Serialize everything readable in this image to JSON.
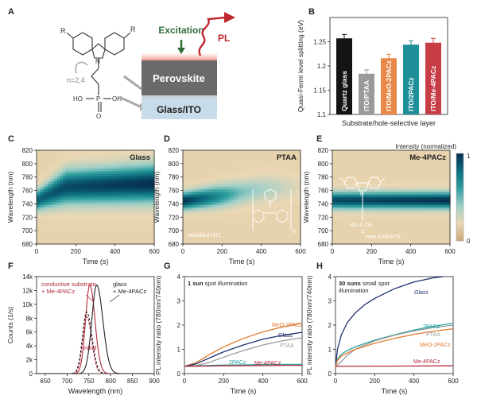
{
  "panels": {
    "A": {
      "letter": "A",
      "excitation": "Excitation",
      "pl": "PL",
      "perovskite": "Perovskite",
      "glass_ito": "Glass/ITO",
      "n_label": "n=2,4",
      "r1": "R",
      "r2": "R",
      "n_atom": "N",
      "p_atom": "P",
      "acid_left": "HO",
      "acid_right": "OH",
      "oxo": "O"
    },
    "B": {
      "letter": "B"
    },
    "C": {
      "letter": "C"
    },
    "D": {
      "letter": "D",
      "inset_label": "standard HTL",
      "inset_n": "n"
    },
    "E": {
      "letter": "E",
      "inset_label": "new SAM HTL",
      "ring_n": "N",
      "ring_r1": "",
      "ring_r2": "",
      "acid": "HO–P–OH",
      "oxo": "O"
    },
    "F": {
      "letter": "F",
      "note_initial": "Initial"
    },
    "G": {
      "letter": "G",
      "note_bold": "1 sun",
      "note_rest": " spot illumination"
    },
    "H": {
      "letter": "H",
      "note_bold": "30 suns",
      "note_rest": " small spot",
      "note_line2": "illumination"
    }
  },
  "colorbar": {
    "title": "Intensity (normalized)",
    "max": "1",
    "min": "0",
    "colors": [
      "#caa87a",
      "#ead7b4",
      "#9fcfc8",
      "#2f9f9f",
      "#0d6d7e",
      "#06304f"
    ]
  },
  "chart_data": [
    {
      "id": "B",
      "type": "bar",
      "ylabel": "Quasi-Fermi level splitting (eV)",
      "xlabel": "Substrate/hole-selective layer",
      "ylim": [
        1.1,
        1.3
      ],
      "yticks": [
        "1.1",
        "1.15",
        "1.2",
        "1.25"
      ],
      "ytick_values": [
        1.1,
        1.15,
        1.2,
        1.25
      ],
      "categories": [
        "Quartz glass",
        "ITO/PTAA",
        "ITO/MeO-2PACz",
        "ITO/2PACz",
        "ITO/Me-4PACz"
      ],
      "values": [
        1.257,
        1.184,
        1.216,
        1.244,
        1.248
      ],
      "errors": [
        0.008,
        0.008,
        0.008,
        0.008,
        0.009
      ],
      "colors": [
        "#141414",
        "#9a9a9a",
        "#e8894a",
        "#1e8e98",
        "#c73d45"
      ]
    },
    {
      "id": "C",
      "type": "heatmap",
      "title": "Glass",
      "xlabel": "Time (s)",
      "ylabel": "Wavelength (nm)",
      "xlim": [
        0,
        600
      ],
      "ylim": [
        680,
        820
      ],
      "xticks": [
        "0",
        "200",
        "400",
        "600"
      ],
      "xtick_values": [
        0,
        200,
        400,
        600
      ],
      "yticks": [
        "680",
        "700",
        "720",
        "740",
        "760",
        "780",
        "800",
        "820"
      ],
      "ytick_values": [
        680,
        700,
        720,
        740,
        760,
        780,
        800,
        820
      ],
      "peak_center": [
        {
          "t": 0,
          "wl": 745
        },
        {
          "t": 150,
          "wl": 765
        },
        {
          "t": 600,
          "wl": 770
        }
      ],
      "peak_width_nm": [
        {
          "t": 0,
          "w": 14
        },
        {
          "t": 150,
          "w": 24
        },
        {
          "t": 600,
          "w": 26
        }
      ],
      "peak_intensity": [
        {
          "t": 0,
          "v": 0.8
        },
        {
          "t": 150,
          "v": 0.9
        },
        {
          "t": 600,
          "v": 1.0
        }
      ]
    },
    {
      "id": "D",
      "type": "heatmap",
      "title": "PTAA",
      "xlabel": "Time (s)",
      "ylabel": "Wavelength (nm)",
      "xlim": [
        0,
        600
      ],
      "ylim": [
        680,
        820
      ],
      "xticks": [
        "0",
        "200",
        "400",
        "600"
      ],
      "xtick_values": [
        0,
        200,
        400,
        600
      ],
      "yticks": [
        "680",
        "700",
        "720",
        "740",
        "760",
        "780",
        "800",
        "820"
      ],
      "ytick_values": [
        680,
        700,
        720,
        740,
        760,
        780,
        800,
        820
      ],
      "peak_center": [
        {
          "t": 0,
          "wl": 744
        },
        {
          "t": 200,
          "wl": 752
        },
        {
          "t": 400,
          "wl": 762
        },
        {
          "t": 600,
          "wl": 765
        }
      ],
      "peak_width_nm": [
        {
          "t": 0,
          "w": 12
        },
        {
          "t": 200,
          "w": 16
        },
        {
          "t": 600,
          "w": 18
        }
      ],
      "peak_intensity": [
        {
          "t": 0,
          "v": 1.0
        },
        {
          "t": 150,
          "v": 0.7
        },
        {
          "t": 300,
          "v": 0.35
        },
        {
          "t": 600,
          "v": 0.05
        }
      ]
    },
    {
      "id": "E",
      "type": "heatmap",
      "title": "Me-4PACz",
      "xlabel": "Time (s)",
      "ylabel": "Wavelength (nm)",
      "xlim": [
        0,
        600
      ],
      "ylim": [
        680,
        820
      ],
      "xticks": [
        "0",
        "200",
        "400",
        "600"
      ],
      "xtick_values": [
        0,
        200,
        400,
        600
      ],
      "yticks": [
        "680",
        "700",
        "720",
        "740",
        "760",
        "780",
        "800",
        "820"
      ],
      "ytick_values": [
        680,
        700,
        720,
        740,
        760,
        780,
        800,
        820
      ],
      "peak_center": [
        {
          "t": 0,
          "wl": 745
        },
        {
          "t": 600,
          "wl": 745
        }
      ],
      "peak_width_nm": [
        {
          "t": 0,
          "w": 12
        },
        {
          "t": 600,
          "w": 12
        }
      ],
      "peak_intensity": [
        {
          "t": 0,
          "v": 0.9
        },
        {
          "t": 300,
          "v": 0.95
        },
        {
          "t": 600,
          "v": 1.0
        }
      ]
    },
    {
      "id": "F",
      "type": "line",
      "xlabel": "Wavelength (nm)",
      "ylabel": "Counts (1/s)",
      "xlim": [
        630,
        900
      ],
      "ylim": [
        0,
        14000
      ],
      "xticks": [
        "650",
        "700",
        "750",
        "800",
        "850",
        "900"
      ],
      "xtick_values": [
        650,
        700,
        750,
        800,
        850,
        900
      ],
      "yticks": [
        "0",
        "2k",
        "4k",
        "6k",
        "8k",
        "10k",
        "12k",
        "14k"
      ],
      "ytick_values": [
        0,
        2000,
        4000,
        6000,
        8000,
        10000,
        12000,
        14000
      ],
      "series": [
        {
          "name": "conductive substrate + Me-4PACz",
          "color": "#b0283a",
          "dash": false,
          "peak": 12800,
          "center": 752,
          "width": 17
        },
        {
          "name": "conductive substrate + Me-4PACz initial",
          "color": "#b0283a",
          "dash": true,
          "peak": 8200,
          "center": 745,
          "width": 16
        },
        {
          "name": "glass + Me-4PACz",
          "color": "#222222",
          "dash": false,
          "peak": 12800,
          "center": 768,
          "width": 20
        },
        {
          "name": "glass + Me-4PACz initial",
          "color": "#222222",
          "dash": true,
          "peak": 8900,
          "center": 745,
          "width": 17
        }
      ],
      "labels": [
        {
          "text": "conductive substrate",
          "color": "#b0283a"
        },
        {
          "text": "+ Me-4PACz",
          "color": "#b0283a"
        },
        {
          "text": "glass",
          "color": "#222222"
        },
        {
          "text": "+ Me-4PACz",
          "color": "#222222"
        }
      ]
    },
    {
      "id": "G",
      "type": "line",
      "xlabel": "Time (s)",
      "ylabel": "PL intensity ratio (780nm/740nm)",
      "xlim": [
        0,
        600
      ],
      "ylim": [
        0,
        4
      ],
      "xticks": [
        "0",
        "200",
        "400",
        "600"
      ],
      "xtick_values": [
        0,
        200,
        400,
        600
      ],
      "yticks": [
        "0",
        "1",
        "2",
        "3",
        "4"
      ],
      "ytick_values": [
        0,
        1,
        2,
        3,
        4
      ],
      "series": [
        {
          "name": "MeO-2PACz",
          "color": "#e07a2e",
          "x": [
            0,
            60,
            120,
            200,
            300,
            400,
            500,
            600
          ],
          "y": [
            0.3,
            0.45,
            0.75,
            1.1,
            1.45,
            1.72,
            1.92,
            2.08
          ]
        },
        {
          "name": "Glass",
          "color": "#1d2f6e",
          "x": [
            0,
            60,
            120,
            200,
            300,
            400,
            500,
            600
          ],
          "y": [
            0.3,
            0.4,
            0.62,
            0.9,
            1.18,
            1.42,
            1.58,
            1.7
          ]
        },
        {
          "name": "PTAA",
          "color": "#9b9b9b",
          "x": [
            0,
            60,
            120,
            200,
            300,
            400,
            500,
            600
          ],
          "y": [
            0.3,
            0.33,
            0.45,
            0.68,
            0.95,
            1.18,
            1.35,
            1.48
          ]
        },
        {
          "name": "2PACz",
          "color": "#2aa7a3",
          "x": [
            0,
            100,
            200,
            300,
            400,
            500,
            600
          ],
          "y": [
            0.3,
            0.33,
            0.35,
            0.36,
            0.37,
            0.38,
            0.38
          ]
        },
        {
          "name": "Me-4PACz",
          "color": "#b0283a",
          "x": [
            0,
            200,
            400,
            600
          ],
          "y": [
            0.3,
            0.32,
            0.33,
            0.34
          ]
        }
      ],
      "labels": [
        {
          "text": "MeO-2PACz",
          "color": "#e07a2e"
        },
        {
          "text": "Glass",
          "color": "#1d2f6e"
        },
        {
          "text": "PTAA",
          "color": "#9b9b9b"
        },
        {
          "text": "2PACz",
          "color": "#2aa7a3"
        },
        {
          "text": "Me-4PACz",
          "color": "#b0283a"
        }
      ]
    },
    {
      "id": "H",
      "type": "line",
      "xlabel": "Time (s)",
      "ylabel": "PL intensity ratio (780nm/740nm)",
      "xlim": [
        0,
        600
      ],
      "ylim": [
        0,
        4
      ],
      "xticks": [
        "0",
        "200",
        "400",
        "600"
      ],
      "xtick_values": [
        0,
        200,
        400,
        600
      ],
      "yticks": [
        "0",
        "1",
        "2",
        "3",
        "4"
      ],
      "ytick_values": [
        0,
        1,
        2,
        3,
        4
      ],
      "series": [
        {
          "name": "Glass",
          "color": "#1d2f6e",
          "x": [
            0,
            10,
            30,
            60,
            100,
            150,
            200,
            300,
            400,
            500,
            550
          ],
          "y": [
            0.3,
            1.0,
            1.6,
            2.1,
            2.5,
            2.85,
            3.1,
            3.5,
            3.78,
            3.95,
            4.0
          ]
        },
        {
          "name": "2PACz",
          "color": "#2aa7a3",
          "x": [
            0,
            10,
            30,
            60,
            100,
            200,
            300,
            400,
            500,
            600
          ],
          "y": [
            0.3,
            0.6,
            0.8,
            0.95,
            1.1,
            1.38,
            1.6,
            1.8,
            1.95,
            2.08
          ]
        },
        {
          "name": "PTAA",
          "color": "#9b9b9b",
          "x": [
            0,
            30,
            60,
            100,
            200,
            300,
            400,
            500,
            600
          ],
          "y": [
            0.3,
            0.5,
            0.75,
            1.0,
            1.35,
            1.58,
            1.76,
            1.9,
            2.0
          ]
        },
        {
          "name": "MeO-2PACz",
          "color": "#e07a2e",
          "x": [
            0,
            10,
            30,
            60,
            100,
            200,
            300,
            400,
            500,
            600
          ],
          "y": [
            0.3,
            0.55,
            0.72,
            0.85,
            1.0,
            1.25,
            1.45,
            1.62,
            1.75,
            1.85
          ]
        },
        {
          "name": "Me-4PACz",
          "color": "#b0283a",
          "x": [
            0,
            600
          ],
          "y": [
            0.3,
            0.32
          ]
        }
      ],
      "labels": [
        {
          "text": "Glass",
          "color": "#1d2f6e"
        },
        {
          "text": "2PACz",
          "color": "#2aa7a3"
        },
        {
          "text": "PTAA",
          "color": "#9b9b9b"
        },
        {
          "text": "MeO-2PACz",
          "color": "#e07a2e"
        },
        {
          "text": "Me-4PACz",
          "color": "#b0283a"
        }
      ]
    }
  ]
}
